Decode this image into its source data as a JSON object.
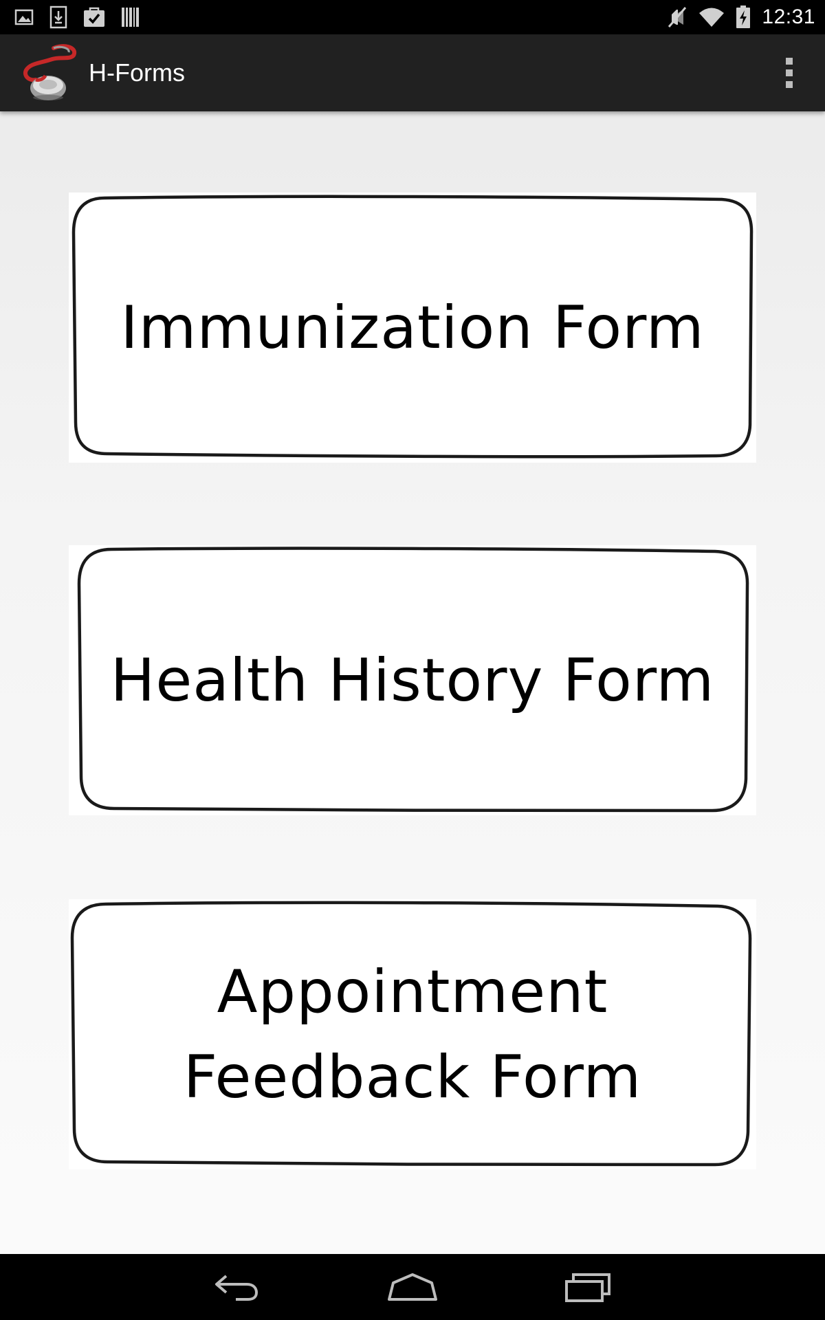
{
  "status_bar": {
    "time": "12:31",
    "left_icons": [
      "image-icon",
      "download-icon",
      "task-icon",
      "barcode-icon"
    ],
    "right_icons": [
      "mute-icon",
      "wifi-icon",
      "battery-charging-icon"
    ]
  },
  "action_bar": {
    "title": "H-Forms",
    "app_icon": "stethoscope-icon",
    "menu_icon": "overflow-menu-icon"
  },
  "forms": {
    "immunization": {
      "lines": [
        "Immunization Form"
      ]
    },
    "health_history": {
      "lines": [
        "Health History Form"
      ]
    },
    "appointment_feedback": {
      "lines": [
        "Appointment",
        "Feedback Form"
      ]
    }
  },
  "nav_bar": {
    "icons": [
      "back-icon",
      "home-icon",
      "recent-apps-icon"
    ]
  },
  "colors": {
    "status_bar": "#000000",
    "action_bar": "#212121",
    "background": "#f2f2f2",
    "card": "#ffffff",
    "text": "#000000"
  }
}
